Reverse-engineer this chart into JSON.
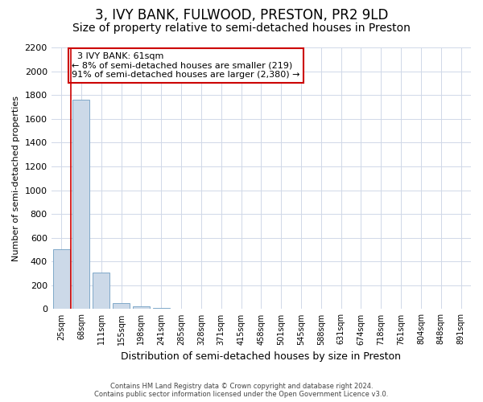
{
  "title": "3, IVY BANK, FULWOOD, PRESTON, PR2 9LD",
  "subtitle": "Size of property relative to semi-detached houses in Preston",
  "xlabel": "Distribution of semi-detached houses by size in Preston",
  "ylabel": "Number of semi-detached properties",
  "footer_line1": "Contains HM Land Registry data © Crown copyright and database right 2024.",
  "footer_line2": "Contains public sector information licensed under the Open Government Licence v3.0.",
  "categories": [
    "25sqm",
    "68sqm",
    "111sqm",
    "155sqm",
    "198sqm",
    "241sqm",
    "285sqm",
    "328sqm",
    "371sqm",
    "415sqm",
    "458sqm",
    "501sqm",
    "545sqm",
    "588sqm",
    "631sqm",
    "674sqm",
    "718sqm",
    "761sqm",
    "804sqm",
    "848sqm",
    "891sqm"
  ],
  "values": [
    500,
    1760,
    305,
    50,
    25,
    12,
    0,
    0,
    0,
    0,
    0,
    0,
    0,
    0,
    0,
    0,
    0,
    0,
    0,
    0,
    0
  ],
  "bar_color": "#ccd9e8",
  "bar_edge_color": "#7fa8c9",
  "annotation_text_line1": "3 IVY BANK: 61sqm",
  "annotation_text_line2": "← 8% of semi-detached houses are smaller (219)",
  "annotation_text_line3": "91% of semi-detached houses are larger (2,380) →",
  "ylim": [
    0,
    2200
  ],
  "yticks": [
    0,
    200,
    400,
    600,
    800,
    1000,
    1200,
    1400,
    1600,
    1800,
    2000,
    2200
  ],
  "background_color": "#ffffff",
  "grid_color": "#d0d8e8",
  "title_fontsize": 12,
  "subtitle_fontsize": 10,
  "annotation_box_edge_color": "#cc0000",
  "red_line_color": "#cc0000",
  "red_line_x": 0.5
}
